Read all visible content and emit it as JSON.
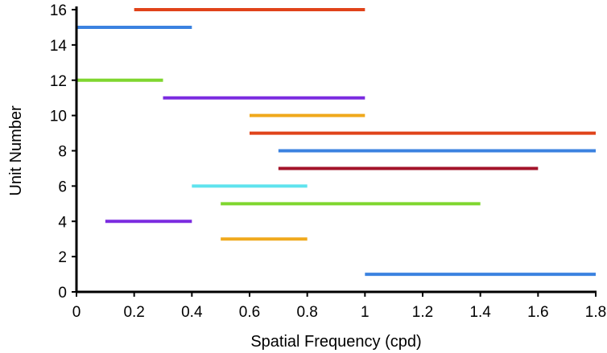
{
  "chart_data": {
    "type": "range-bar",
    "xlabel": "Spatial Frequency (cpd)",
    "ylabel": "Unit Number",
    "xlim": [
      0,
      1.8
    ],
    "ylim": [
      0,
      16
    ],
    "x_ticks": [
      "0",
      "0.2",
      "0.4",
      "0.6",
      "0.8",
      "1",
      "1.2",
      "1.4",
      "1.6",
      "1.8"
    ],
    "y_ticks": [
      "0",
      "2",
      "4",
      "6",
      "8",
      "10",
      "12",
      "14",
      "16"
    ],
    "grid": false,
    "legend": "none",
    "segments": [
      {
        "unit": 1,
        "start": 1.0,
        "end": 1.8,
        "color": "#3b82e0"
      },
      {
        "unit": 3,
        "start": 0.5,
        "end": 0.8,
        "color": "#f0a91c"
      },
      {
        "unit": 4,
        "start": 0.1,
        "end": 0.4,
        "color": "#7b2be0"
      },
      {
        "unit": 5,
        "start": 0.5,
        "end": 1.4,
        "color": "#7fd62f"
      },
      {
        "unit": 6,
        "start": 0.4,
        "end": 0.8,
        "color": "#5fe3ee"
      },
      {
        "unit": 7,
        "start": 0.7,
        "end": 1.6,
        "color": "#a3132a"
      },
      {
        "unit": 8,
        "start": 0.7,
        "end": 1.8,
        "color": "#3b82e0"
      },
      {
        "unit": 9,
        "start": 0.6,
        "end": 1.8,
        "color": "#e0431a"
      },
      {
        "unit": 10,
        "start": 0.6,
        "end": 1.0,
        "color": "#f0a91c"
      },
      {
        "unit": 11,
        "start": 0.3,
        "end": 1.0,
        "color": "#7b2be0"
      },
      {
        "unit": 12,
        "start": 0.0,
        "end": 0.3,
        "color": "#7fd62f"
      },
      {
        "unit": 15,
        "start": 0.0,
        "end": 0.4,
        "color": "#3b82e0"
      },
      {
        "unit": 16,
        "start": 0.2,
        "end": 1.0,
        "color": "#e0431a"
      }
    ]
  }
}
